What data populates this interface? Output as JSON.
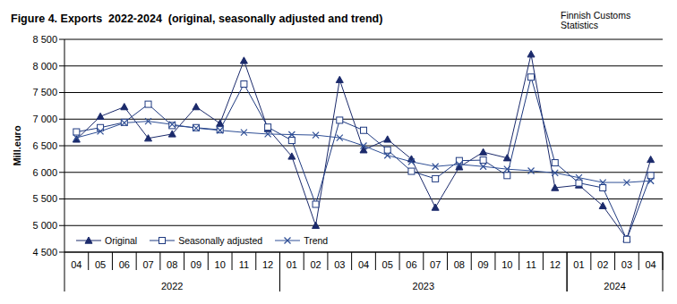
{
  "chart_data": {
    "type": "line",
    "title": "Figure 4. Exports  2022-2024  (original, seasonally adjusted and trend)",
    "source": "Finnish Customs Statistics",
    "y_label": "Mill.euro",
    "categories": [
      "04",
      "05",
      "06",
      "07",
      "08",
      "09",
      "10",
      "11",
      "12",
      "01",
      "02",
      "03",
      "04",
      "05",
      "06",
      "07",
      "08",
      "09",
      "10",
      "11",
      "12",
      "01",
      "02",
      "03",
      "04"
    ],
    "groups": [
      {
        "label": "2022",
        "count": 9
      },
      {
        "label": "2023",
        "count": 12
      },
      {
        "label": "2024",
        "count": 4
      }
    ],
    "ylim": [
      4500,
      8500
    ],
    "yticks": [
      {
        "value": 4500,
        "label": "4 500"
      },
      {
        "value": 5000,
        "label": "5 000"
      },
      {
        "value": 5500,
        "label": "5 500"
      },
      {
        "value": 6000,
        "label": "6 000"
      },
      {
        "value": 6500,
        "label": "6 500"
      },
      {
        "value": 7000,
        "label": "7 000"
      },
      {
        "value": 7500,
        "label": "7 500"
      },
      {
        "value": 8000,
        "label": "8 000"
      },
      {
        "value": 8500,
        "label": "8 500"
      }
    ],
    "grid": true,
    "legend": "lower left",
    "series": [
      {
        "name": "Original",
        "color": "#1b2a6b",
        "marker": "triangle",
        "values": [
          6620,
          7050,
          7230,
          6640,
          6720,
          7230,
          6920,
          8100,
          6820,
          6300,
          5000,
          7740,
          6420,
          6620,
          6250,
          5340,
          6100,
          6380,
          6270,
          8220,
          5710,
          5760,
          5370,
          4750,
          6240
        ]
      },
      {
        "name": "Seasonally adjusted",
        "color": "#1f3a80",
        "marker": "square",
        "values": [
          6760,
          6840,
          6940,
          7280,
          6880,
          6840,
          6800,
          7660,
          6850,
          6600,
          5400,
          6980,
          6790,
          6420,
          6020,
          5880,
          6220,
          6230,
          5940,
          7790,
          6180,
          5800,
          5710,
          4740,
          5940
        ]
      },
      {
        "name": "Trend",
        "color": "#2f4f96",
        "marker": "cross",
        "values": [
          6650,
          6770,
          6930,
          6960,
          6900,
          6830,
          6790,
          6750,
          6720,
          6710,
          6700,
          6650,
          6500,
          6320,
          6200,
          6110,
          6150,
          6110,
          6060,
          6030,
          5990,
          5900,
          5810,
          5810,
          5840
        ]
      }
    ]
  }
}
